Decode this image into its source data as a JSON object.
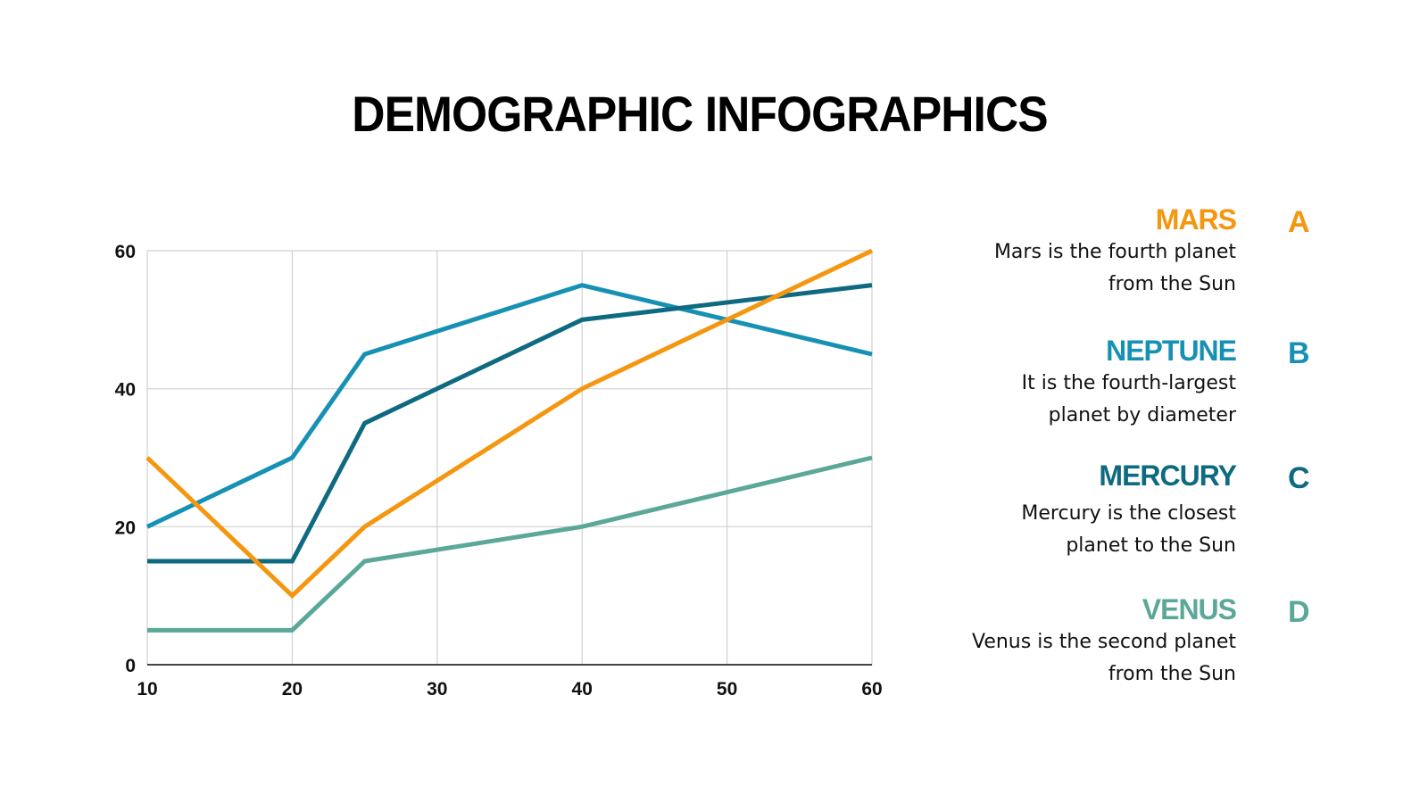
{
  "title": "DEMOGRAPHIC INFOGRAPHICS",
  "legend": [
    {
      "name": "MARS",
      "letter": "A",
      "desc1": "Mars is the fourth planet",
      "desc2": "from the Sun",
      "color": "#F5960F"
    },
    {
      "name": "NEPTUNE",
      "letter": "B",
      "desc1": "It is the fourth-largest",
      "desc2": "planet by diameter",
      "color": "#1691B4"
    },
    {
      "name": "MERCURY",
      "letter": "C",
      "desc1": "Mercury is the closest",
      "desc2": "planet to the Sun",
      "color": "#0E6A80"
    },
    {
      "name": "VENUS",
      "letter": "D",
      "desc1": "Venus is the second planet",
      "desc2": "from the Sun",
      "color": "#5BA899"
    }
  ],
  "chart_data": {
    "type": "line",
    "xlim": [
      10,
      60
    ],
    "ylim": [
      0,
      60
    ],
    "xticks": [
      "10",
      "20",
      "30",
      "40",
      "50",
      "60"
    ],
    "yticks": [
      "0",
      "20",
      "40",
      "60"
    ],
    "grid": true,
    "series": [
      {
        "name": "NEPTUNE",
        "color": "#1691B4",
        "points": [
          [
            10,
            20
          ],
          [
            20,
            30
          ],
          [
            25,
            45
          ],
          [
            40,
            55
          ],
          [
            60,
            45
          ]
        ]
      },
      {
        "name": "MERCURY",
        "color": "#0E6A80",
        "points": [
          [
            10,
            15
          ],
          [
            20,
            15
          ],
          [
            25,
            35
          ],
          [
            40,
            50
          ],
          [
            60,
            55
          ]
        ]
      },
      {
        "name": "VENUS",
        "color": "#5BA899",
        "points": [
          [
            10,
            5
          ],
          [
            20,
            5
          ],
          [
            25,
            15
          ],
          [
            40,
            20
          ],
          [
            60,
            30
          ]
        ]
      },
      {
        "name": "MARS",
        "color": "#F5960F",
        "points": [
          [
            10,
            30
          ],
          [
            20,
            10
          ],
          [
            25,
            20
          ],
          [
            40,
            40
          ],
          [
            50,
            50
          ],
          [
            60,
            60
          ]
        ]
      }
    ]
  }
}
